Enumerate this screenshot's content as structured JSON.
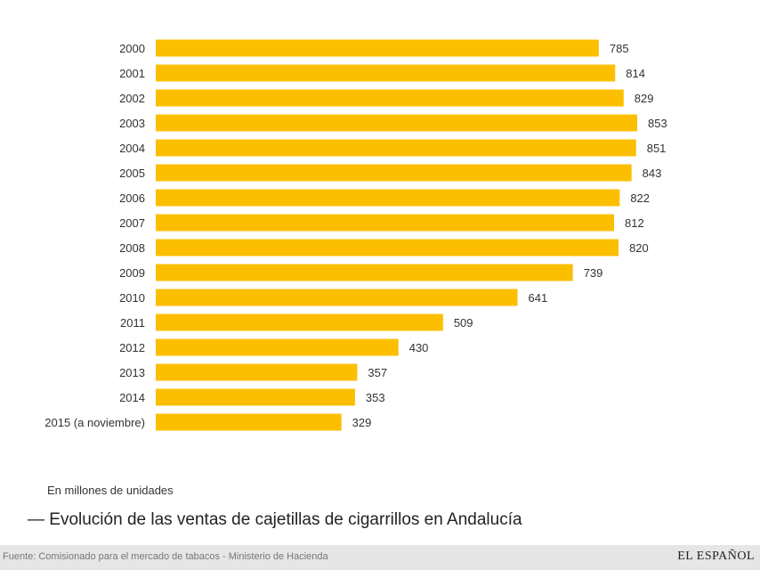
{
  "chart_data": {
    "type": "bar",
    "orientation": "horizontal",
    "title": "— Evolución de las ventas de cajetillas de cigarrillos en Andalucía",
    "unit_label": "En millones de unidades",
    "categories": [
      "2000",
      "2001",
      "2002",
      "2003",
      "2004",
      "2005",
      "2006",
      "2007",
      "2008",
      "2009",
      "2010",
      "2011",
      "2012",
      "2013",
      "2014",
      "2015 (a noviembre)"
    ],
    "values": [
      785,
      814,
      829,
      853,
      851,
      843,
      822,
      812,
      820,
      739,
      641,
      509,
      430,
      357,
      353,
      329
    ],
    "xlim": [
      0,
      853
    ],
    "grid": false,
    "bar_color": "#fcbf00"
  },
  "footer": {
    "source": "Fuente: Comisionado para el mercado de tabacos - Ministerio de Hacienda",
    "logo": "EL ESPAÑOL"
  }
}
